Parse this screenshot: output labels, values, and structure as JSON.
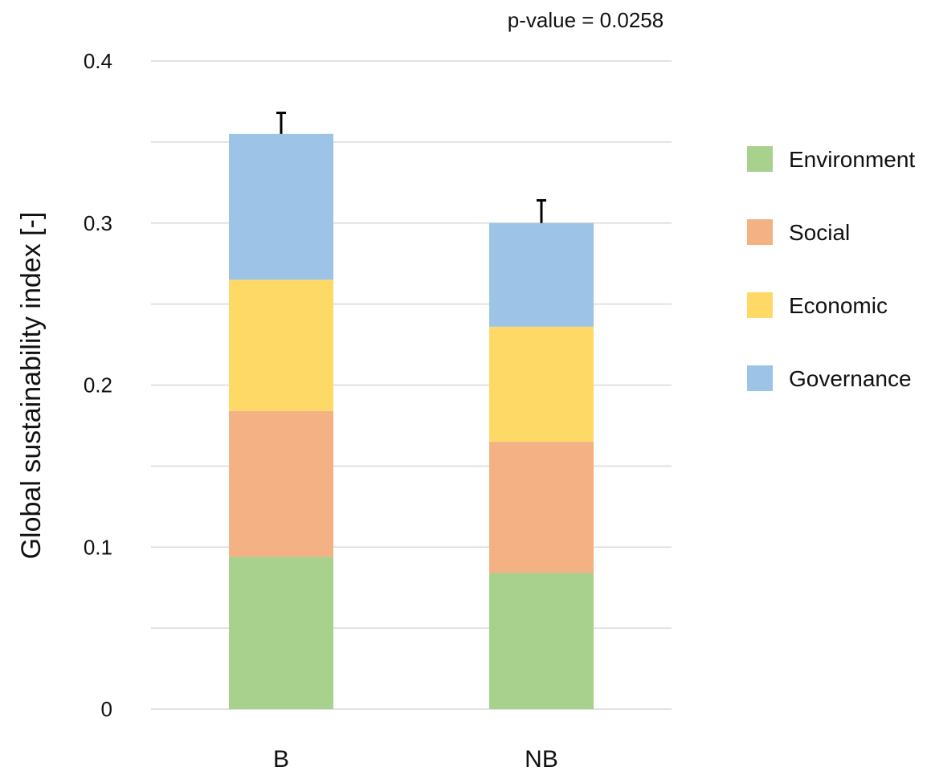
{
  "chart_data": {
    "type": "bar",
    "stacked": true,
    "title": "",
    "xlabel": "",
    "ylabel": "Global sustainability index [-]",
    "ylim": [
      0,
      0.4
    ],
    "yticks": [
      0,
      0.1,
      0.2,
      0.3,
      0.4
    ],
    "ytick_labels": [
      "0",
      "0.1",
      "0.2",
      "0.3",
      "0.4"
    ],
    "grid": true,
    "legend_position": "right",
    "annotation": "p-value = 0.0258",
    "categories": [
      "B",
      "NB"
    ],
    "series": [
      {
        "name": "Environment",
        "color": "#a9d18e",
        "values": [
          0.094,
          0.084
        ]
      },
      {
        "name": "Social",
        "color": "#f4b183",
        "values": [
          0.09,
          0.081
        ]
      },
      {
        "name": "Economic",
        "color": "#ffd966",
        "values": [
          0.081,
          0.071
        ]
      },
      {
        "name": "Governance",
        "color": "#9dc3e6",
        "values": [
          0.09,
          0.064
        ]
      }
    ],
    "totals": [
      0.355,
      0.3
    ],
    "error_upper": [
      0.013,
      0.014
    ]
  }
}
